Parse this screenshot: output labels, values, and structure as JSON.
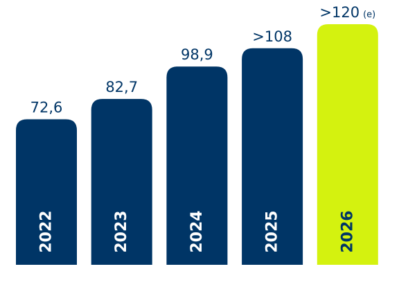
{
  "chart_data": {
    "type": "bar",
    "title": "",
    "xlabel": "",
    "ylabel": "",
    "categories": [
      "2022",
      "2023",
      "2024",
      "2025",
      "2026"
    ],
    "values": [
      72.6,
      82.7,
      98.9,
      108,
      120
    ],
    "value_labels": [
      "72,6",
      "82,7",
      "98,9",
      ">108",
      ">120"
    ],
    "value_notes": [
      "",
      "",
      "",
      "",
      "(e)"
    ],
    "bar_colors": [
      "#003566",
      "#003566",
      "#003566",
      "#003566",
      "#d4f20f"
    ],
    "value_label_color": "#003566",
    "category_label_colors": [
      "#ffffff",
      "#ffffff",
      "#ffffff",
      "#ffffff",
      "#003566"
    ],
    "ylim": [
      0,
      120
    ],
    "grid": false
  }
}
